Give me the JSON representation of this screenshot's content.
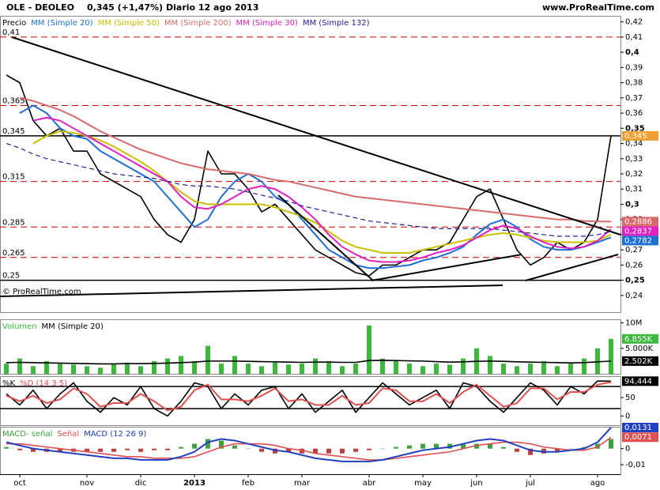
{
  "header": {
    "symbol": "OLE - DEOLEO",
    "quote": "0,345 (+1,47%)",
    "period": "Diario  12 ago 2013",
    "site": "www.ProRealTime.com"
  },
  "chart_data": [
    {
      "type": "line",
      "note": "© ProRealTime.com",
      "categories": [
        null,
        "oct",
        null,
        null,
        null,
        null,
        "nov",
        null,
        null,
        null,
        "dic",
        null,
        null,
        null,
        "2013",
        null,
        null,
        null,
        "feb",
        null,
        null,
        null,
        "mar",
        null,
        null,
        null,
        null,
        "abr",
        null,
        null,
        null,
        "may",
        null,
        null,
        null,
        "jun",
        null,
        null,
        null,
        "jul",
        null,
        null,
        null,
        null,
        "ago",
        null
      ],
      "ylim": [
        0.229,
        0.424
      ],
      "yticks": [
        {
          "value": 0.24,
          "label": "0,24"
        },
        {
          "value": 0.25,
          "label": "0,25"
        },
        {
          "value": 0.26,
          "label": "0,26"
        },
        {
          "value": 0.27,
          "label": "0,27"
        },
        {
          "value": 0.28,
          "label": "0,28"
        },
        {
          "value": 0.29,
          "label": "0,29"
        },
        {
          "value": 0.3,
          "label": "0,3"
        },
        {
          "value": 0.31,
          "label": "0,31"
        },
        {
          "value": 0.32,
          "label": "0,32"
        },
        {
          "value": 0.33,
          "label": "0,33"
        },
        {
          "value": 0.34,
          "label": "0,34"
        },
        {
          "value": 0.35,
          "label": "0,35"
        },
        {
          "value": 0.36,
          "label": "0,36"
        },
        {
          "value": 0.37,
          "label": "0,37"
        },
        {
          "value": 0.38,
          "label": "0,38"
        },
        {
          "value": 0.39,
          "label": "0,39"
        },
        {
          "value": 0.4,
          "label": "0,4"
        },
        {
          "value": 0.41,
          "label": "0,41"
        },
        {
          "value": 0.42,
          "label": "0,42"
        }
      ],
      "levels": [
        {
          "value": 0.41,
          "label": "0,41",
          "style": "dashed",
          "color": "#cc0000"
        },
        {
          "value": 0.365,
          "label": "0,365",
          "style": "dashed",
          "color": "#cc0000"
        },
        {
          "value": 0.345,
          "label": "0,345",
          "style": "solid",
          "color": "#000000"
        },
        {
          "value": 0.315,
          "label": "0,315",
          "style": "dashed",
          "color": "#cc0000"
        },
        {
          "value": 0.285,
          "label": "0,285",
          "style": "dashed",
          "color": "#cc0000"
        },
        {
          "value": 0.265,
          "label": "0,265",
          "style": "dashed",
          "color": "#cc0000"
        },
        {
          "value": 0.25,
          "label": "0,25",
          "style": "solid",
          "color": "#000000"
        }
      ],
      "series": [
        {
          "name": "Precio",
          "kind": "line",
          "color": "#000000",
          "width": 1.6,
          "label_color": "#f0a030",
          "last_label": "0,345",
          "values": [
            0.385,
            0.38,
            0.355,
            0.345,
            0.35,
            0.335,
            0.335,
            0.32,
            0.315,
            0.31,
            0.305,
            0.29,
            0.28,
            0.275,
            0.29,
            0.335,
            0.32,
            0.32,
            0.31,
            0.295,
            0.3,
            0.29,
            0.28,
            0.27,
            0.265,
            0.26,
            0.255,
            0.253,
            0.26,
            0.26,
            0.265,
            0.27,
            0.27,
            0.275,
            0.29,
            0.305,
            0.31,
            0.29,
            0.27,
            0.26,
            0.265,
            0.275,
            0.27,
            0.275,
            0.29,
            0.345
          ]
        },
        {
          "name": "MM (Simple 20)",
          "kind": "line",
          "color": "#1f6fd6",
          "width": 2,
          "last_label": "0,2782",
          "values": [
            null,
            0.36,
            0.365,
            0.36,
            0.35,
            0.345,
            0.343,
            0.335,
            0.33,
            0.325,
            0.32,
            0.315,
            0.305,
            0.295,
            0.285,
            0.29,
            0.305,
            0.315,
            0.32,
            0.315,
            0.305,
            0.3,
            0.29,
            0.28,
            0.27,
            0.265,
            0.26,
            0.258,
            0.258,
            0.259,
            0.26,
            0.263,
            0.265,
            0.268,
            0.272,
            0.28,
            0.287,
            0.29,
            0.285,
            0.277,
            0.272,
            0.27,
            0.27,
            0.272,
            0.275,
            0.2782
          ]
        },
        {
          "name": "MM (Simple 50)",
          "kind": "line",
          "color": "#c8c000",
          "width": 2,
          "values": [
            null,
            null,
            0.34,
            0.345,
            0.348,
            0.347,
            0.345,
            0.342,
            0.338,
            0.333,
            0.328,
            0.322,
            0.315,
            0.308,
            0.302,
            0.3,
            0.3,
            0.3,
            0.3,
            0.3,
            0.298,
            0.295,
            0.292,
            0.288,
            0.282,
            0.276,
            0.272,
            0.27,
            0.268,
            0.268,
            0.268,
            0.27,
            0.272,
            0.274,
            0.276,
            0.278,
            0.28,
            0.281,
            0.28,
            0.278,
            0.276,
            0.275,
            0.275,
            0.275,
            0.276,
            0.28
          ]
        },
        {
          "name": "MM (Simple 200)",
          "kind": "line",
          "color": "#d86a6a",
          "width": 2,
          "last_label": "0,2886",
          "values": [
            null,
            0.37,
            0.368,
            0.365,
            0.362,
            0.358,
            0.353,
            0.348,
            0.344,
            0.34,
            0.336,
            0.333,
            0.33,
            0.327,
            0.325,
            0.323,
            0.322,
            0.321,
            0.32,
            0.318,
            0.316,
            0.315,
            0.313,
            0.311,
            0.309,
            0.307,
            0.305,
            0.304,
            0.303,
            0.302,
            0.301,
            0.3,
            0.299,
            0.298,
            0.297,
            0.296,
            0.295,
            0.294,
            0.293,
            0.292,
            0.291,
            0.29,
            0.29,
            0.289,
            0.2887,
            0.2886
          ]
        },
        {
          "name": "MM (Simple 30)",
          "kind": "line",
          "color": "#e020c0",
          "width": 2,
          "last_label": "0,2837",
          "values": [
            null,
            null,
            0.355,
            0.357,
            0.355,
            0.35,
            0.345,
            0.34,
            0.335,
            0.33,
            0.325,
            0.32,
            0.315,
            0.305,
            0.298,
            0.297,
            0.3,
            0.305,
            0.31,
            0.312,
            0.31,
            0.305,
            0.298,
            0.29,
            0.28,
            0.272,
            0.267,
            0.263,
            0.262,
            0.262,
            0.263,
            0.265,
            0.268,
            0.27,
            0.273,
            0.278,
            0.283,
            0.286,
            0.284,
            0.279,
            0.275,
            0.272,
            0.271,
            0.272,
            0.276,
            0.2837
          ]
        },
        {
          "name": "MM (Simple 132)",
          "kind": "line",
          "color": "#22229a",
          "width": 1.2,
          "style": "dashed",
          "values": [
            0.34,
            0.337,
            0.333,
            0.33,
            0.328,
            0.326,
            0.324,
            0.322,
            0.32,
            0.319,
            0.318,
            0.317,
            0.315,
            0.313,
            0.312,
            0.312,
            0.311,
            0.31,
            0.308,
            0.306,
            0.304,
            0.302,
            0.299,
            0.297,
            0.295,
            0.293,
            0.291,
            0.289,
            0.288,
            0.287,
            0.286,
            0.285,
            0.284,
            0.284,
            0.284,
            0.284,
            0.284,
            0.283,
            0.282,
            0.281,
            0.28,
            0.279,
            0.279,
            0.279,
            0.28,
            0.282
          ]
        }
      ]
    },
    {
      "type": "bar",
      "ylim": [
        0,
        10700
      ],
      "yticks": [
        {
          "value": 5000,
          "label": "5.000K"
        },
        {
          "value": 10000,
          "label": "10M"
        }
      ],
      "series": [
        {
          "name": "Volumen",
          "kind": "bar",
          "color": "#3cb83c",
          "last_label": "6.855K",
          "values": [
            2000,
            3000,
            1500,
            2500,
            2000,
            1800,
            1500,
            1200,
            2000,
            2200,
            1500,
            2500,
            3000,
            3500,
            2500,
            5500,
            2000,
            3500,
            2000,
            1500,
            2200,
            1800,
            2000,
            3000,
            2500,
            1500,
            2000,
            9500,
            3000,
            2500,
            2000,
            1500,
            2000,
            1800,
            3000,
            5000,
            3500,
            2000,
            1500,
            2000,
            2500,
            1500,
            2000,
            3000,
            5000,
            6855
          ]
        },
        {
          "name": "MM (Simple 20)",
          "kind": "line",
          "color": "#000000",
          "width": 1.6,
          "last_label": "2.502K",
          "values": [
            2200,
            2250,
            2200,
            2150,
            2100,
            2050,
            2000,
            1950,
            1950,
            2000,
            2000,
            2050,
            2100,
            2200,
            2300,
            2500,
            2500,
            2500,
            2450,
            2400,
            2350,
            2300,
            2250,
            2300,
            2300,
            2250,
            2250,
            2600,
            2650,
            2600,
            2550,
            2500,
            2400,
            2300,
            2350,
            2450,
            2500,
            2450,
            2350,
            2300,
            2250,
            2200,
            2150,
            2200,
            2350,
            2502
          ]
        }
      ]
    },
    {
      "type": "line",
      "ylim": [
        -25,
        108
      ],
      "yticks": [
        0,
        50
      ],
      "levels": [
        {
          "value": 80,
          "style": "solid",
          "color": "#000000"
        },
        {
          "value": 20,
          "style": "solid",
          "color": "#000000"
        }
      ],
      "series": [
        {
          "name": "%K",
          "kind": "line",
          "color": "#000000",
          "width": 1.6,
          "last_label": "94,444",
          "values": [
            60,
            30,
            70,
            20,
            60,
            90,
            40,
            10,
            50,
            30,
            80,
            20,
            0,
            40,
            90,
            80,
            20,
            60,
            30,
            70,
            80,
            20,
            60,
            10,
            40,
            70,
            10,
            50,
            90,
            60,
            30,
            50,
            70,
            20,
            90,
            80,
            40,
            10,
            50,
            90,
            70,
            30,
            80,
            60,
            95,
            94.444
          ]
        },
        {
          "name": "%D (14 3 5)",
          "kind": "line",
          "color": "#e05050",
          "width": 2,
          "values": [
            55,
            40,
            55,
            35,
            45,
            75,
            60,
            25,
            35,
            35,
            60,
            40,
            15,
            25,
            70,
            85,
            45,
            45,
            40,
            55,
            75,
            40,
            45,
            30,
            30,
            55,
            30,
            35,
            75,
            70,
            40,
            40,
            60,
            35,
            65,
            85,
            55,
            25,
            35,
            75,
            75,
            45,
            65,
            65,
            85,
            92
          ]
        }
      ]
    },
    {
      "type": "bar",
      "ylim": [
        -0.0159,
        0.0136
      ],
      "yticks": [
        {
          "value": -0.01,
          "label": "-0,01"
        },
        0
      ],
      "series": [
        {
          "name": "MACD- señal",
          "kind": "bar",
          "color": "#40a040",
          "negative_color": "#c04040",
          "values": [
            0.001,
            -0.001,
            -0.002,
            -0.002,
            -0.002,
            -0.002,
            -0.002,
            -0.002,
            -0.002,
            -0.001,
            -0.002,
            -0.001,
            -0.001,
            0.001,
            0.003,
            0.006,
            0.005,
            0.002,
            0,
            -0.002,
            -0.003,
            -0.002,
            -0.003,
            -0.003,
            -0.003,
            -0.003,
            -0.002,
            -0.001,
            0,
            0.001,
            0.002,
            0.003,
            0.003,
            0.003,
            0.003,
            0.003,
            0.003,
            0.001,
            -0.002,
            -0.004,
            -0.003,
            -0.002,
            0,
            0.001,
            0.003,
            0.006
          ]
        },
        {
          "name": "Señal",
          "kind": "line",
          "color": "#e05050",
          "width": 1.6,
          "last_label": "0,0071",
          "values": [
            0.003,
            0.003,
            0.002,
            0.001,
            0,
            -0.001,
            -0.002,
            -0.003,
            -0.004,
            -0.005,
            -0.005,
            -0.006,
            -0.006,
            -0.006,
            -0.005,
            -0.002,
            0.001,
            0.003,
            0.003,
            0.003,
            0.002,
            0,
            -0.001,
            -0.003,
            -0.004,
            -0.005,
            -0.006,
            -0.007,
            -0.007,
            -0.006,
            -0.005,
            -0.004,
            -0.003,
            -0.002,
            0,
            0.002,
            0.003,
            0.004,
            0.004,
            0.003,
            0.001,
            0,
            -0.001,
            -0.001,
            0.001,
            0.0071
          ]
        },
        {
          "name": "MACD (12 26 9)",
          "kind": "line",
          "color": "#2040c0",
          "width": 2,
          "last_label": "0,0131",
          "values": [
            0.004,
            0.002,
            0,
            -0.001,
            -0.002,
            -0.003,
            -0.004,
            -0.005,
            -0.006,
            -0.006,
            -0.007,
            -0.007,
            -0.007,
            -0.005,
            -0.002,
            0.004,
            0.006,
            0.005,
            0.003,
            0.001,
            -0.001,
            -0.002,
            -0.004,
            -0.006,
            -0.007,
            -0.008,
            -0.008,
            -0.008,
            -0.007,
            -0.005,
            -0.003,
            -0.001,
            0,
            0.001,
            0.003,
            0.005,
            0.006,
            0.005,
            0.002,
            -0.001,
            -0.002,
            -0.002,
            -0.001,
            0,
            0.004,
            0.0131
          ]
        }
      ]
    }
  ]
}
